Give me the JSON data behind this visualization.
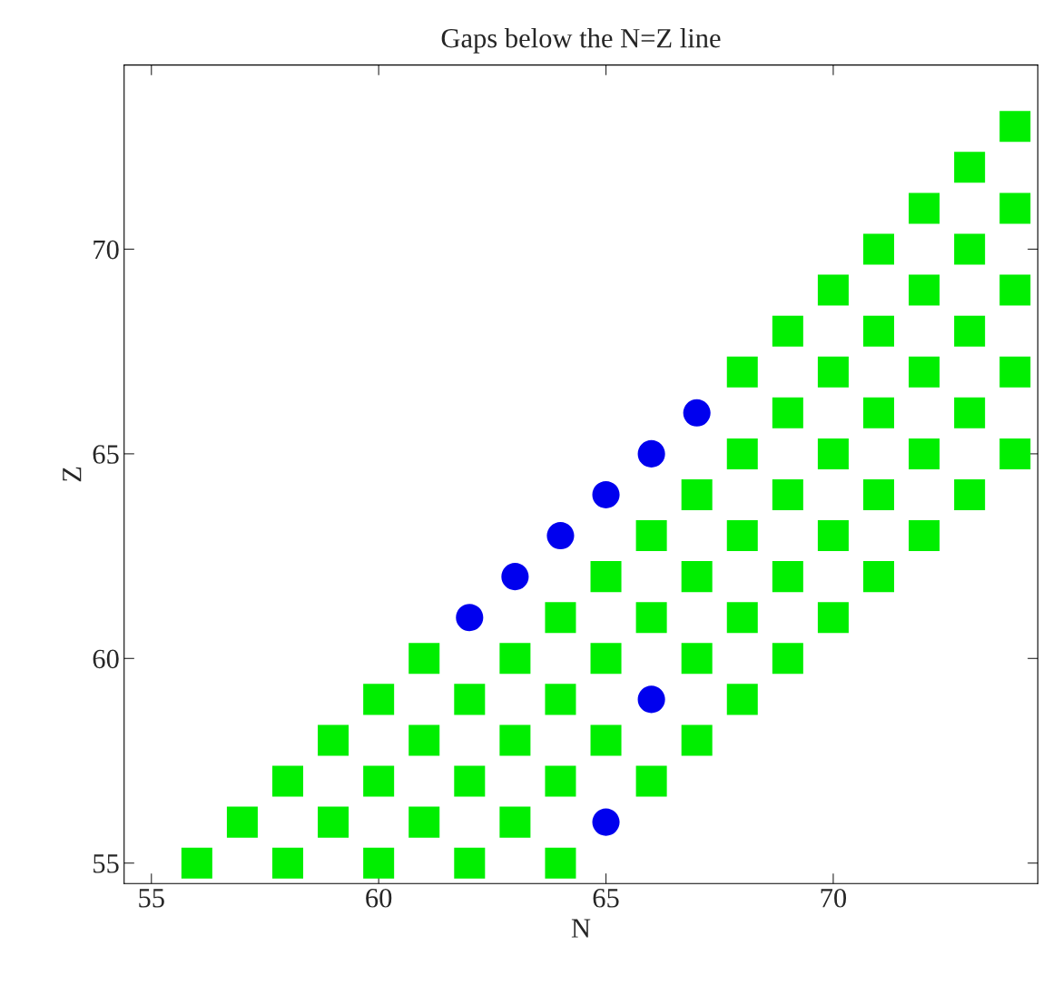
{
  "chart_data": {
    "type": "scatter",
    "title": "Gaps below the N=Z line",
    "xlabel": "N",
    "ylabel": "Z",
    "xlim": [
      54.4,
      74.5
    ],
    "ylim": [
      54.5,
      74.5
    ],
    "xticks": [
      55,
      60,
      65,
      70
    ],
    "yticks": [
      55,
      60,
      65,
      70
    ],
    "grid": false,
    "legend": false,
    "series": [
      {
        "color": "#00ee00",
        "marker": "square",
        "x": [
          56,
          58,
          60,
          62,
          64,
          57,
          59,
          61,
          63,
          58,
          60,
          62,
          64,
          66,
          59,
          61,
          63,
          65,
          67,
          60,
          62,
          64,
          68,
          61,
          63,
          65,
          67,
          69,
          64,
          66,
          68,
          70,
          65,
          67,
          69,
          71,
          66,
          68,
          70,
          72,
          67,
          69,
          71,
          73,
          68,
          70,
          72,
          74,
          69,
          71,
          73,
          68,
          70,
          72,
          74,
          69,
          71,
          73,
          70,
          72,
          74,
          71,
          73,
          72,
          74,
          73,
          74
        ],
        "values": [
          55,
          55,
          55,
          55,
          55,
          56,
          56,
          56,
          56,
          57,
          57,
          57,
          57,
          57,
          58,
          58,
          58,
          58,
          58,
          59,
          59,
          59,
          59,
          60,
          60,
          60,
          60,
          60,
          61,
          61,
          61,
          61,
          62,
          62,
          62,
          62,
          63,
          63,
          63,
          63,
          64,
          64,
          64,
          64,
          65,
          65,
          65,
          65,
          66,
          66,
          66,
          67,
          67,
          67,
          67,
          68,
          68,
          68,
          69,
          69,
          69,
          70,
          70,
          71,
          71,
          72,
          73
        ]
      },
      {
        "color": "#0000ee",
        "marker": "circle",
        "x": [
          65,
          66,
          62,
          63,
          64,
          65,
          66,
          67
        ],
        "values": [
          56,
          59,
          61,
          62,
          63,
          64,
          65,
          66
        ]
      }
    ]
  }
}
